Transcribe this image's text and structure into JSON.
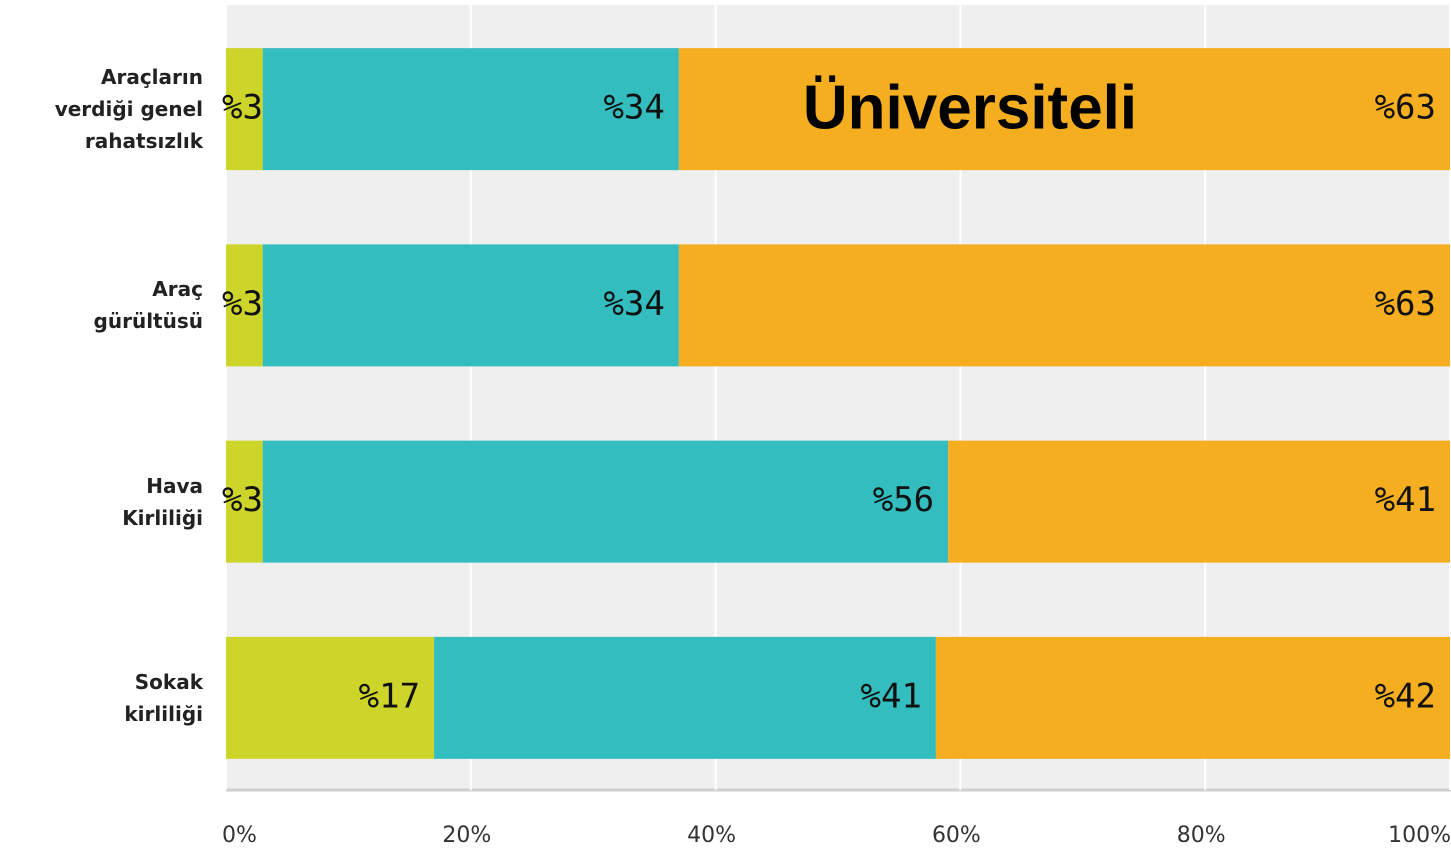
{
  "chart_data": {
    "type": "stacked_barh",
    "title": "Üniversiteli",
    "categories": [
      "Araçların\nverdiği genel\nrahatsızlık",
      "Araç\ngürültüsü",
      "Hava\nKirliliği",
      "Sokak\nkirliliği"
    ],
    "series": [
      {
        "color": "#cdd52a",
        "values": [
          3,
          3,
          3,
          17
        ],
        "value_labels": [
          "%3",
          "%3",
          "%3",
          "%17"
        ]
      },
      {
        "color": "#33bdbf",
        "values": [
          34,
          34,
          56,
          41
        ],
        "value_labels": [
          "%34",
          "%34",
          "%56",
          "%41"
        ]
      },
      {
        "color": "#f5ae20",
        "values": [
          63,
          63,
          41,
          42
        ],
        "value_labels": [
          "%63",
          "%63",
          "%41",
          "%42"
        ]
      }
    ],
    "xlim": [
      0,
      100
    ],
    "xticks": [
      {
        "value": 0,
        "label": "0%"
      },
      {
        "value": 20,
        "label": "20%"
      },
      {
        "value": 40,
        "label": "40%"
      },
      {
        "value": 60,
        "label": "60%"
      },
      {
        "value": 80,
        "label": "80%"
      },
      {
        "value": 100,
        "label": "100%"
      }
    ],
    "grid": true
  }
}
